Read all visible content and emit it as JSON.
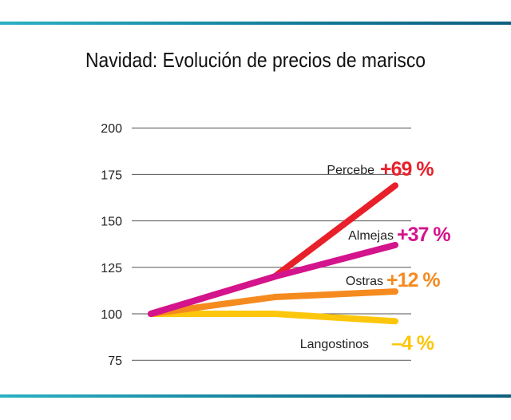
{
  "chart_data": {
    "type": "line",
    "title": "Navidad: Evolución de precios de marisco",
    "xlabel": "",
    "ylabel": "",
    "x": [
      1,
      2,
      3
    ],
    "ylim": [
      75,
      200
    ],
    "yticks": [
      "200",
      "175",
      "150",
      "125",
      "100",
      "75"
    ],
    "grid": true,
    "series": [
      {
        "name": "Percebe",
        "change": "+69 %",
        "color": "#e8202a",
        "values": [
          100,
          120,
          169
        ]
      },
      {
        "name": "Almejas",
        "change": "+37 %",
        "color": "#d4148c",
        "values": [
          100,
          120,
          137
        ]
      },
      {
        "name": "Ostras",
        "change": "+12 %",
        "color": "#f58a1f",
        "values": [
          100,
          109,
          112
        ]
      },
      {
        "name": "Langostinos",
        "change": "–4 %",
        "color": "#fcc60c",
        "values": [
          100,
          100,
          96
        ]
      }
    ]
  }
}
